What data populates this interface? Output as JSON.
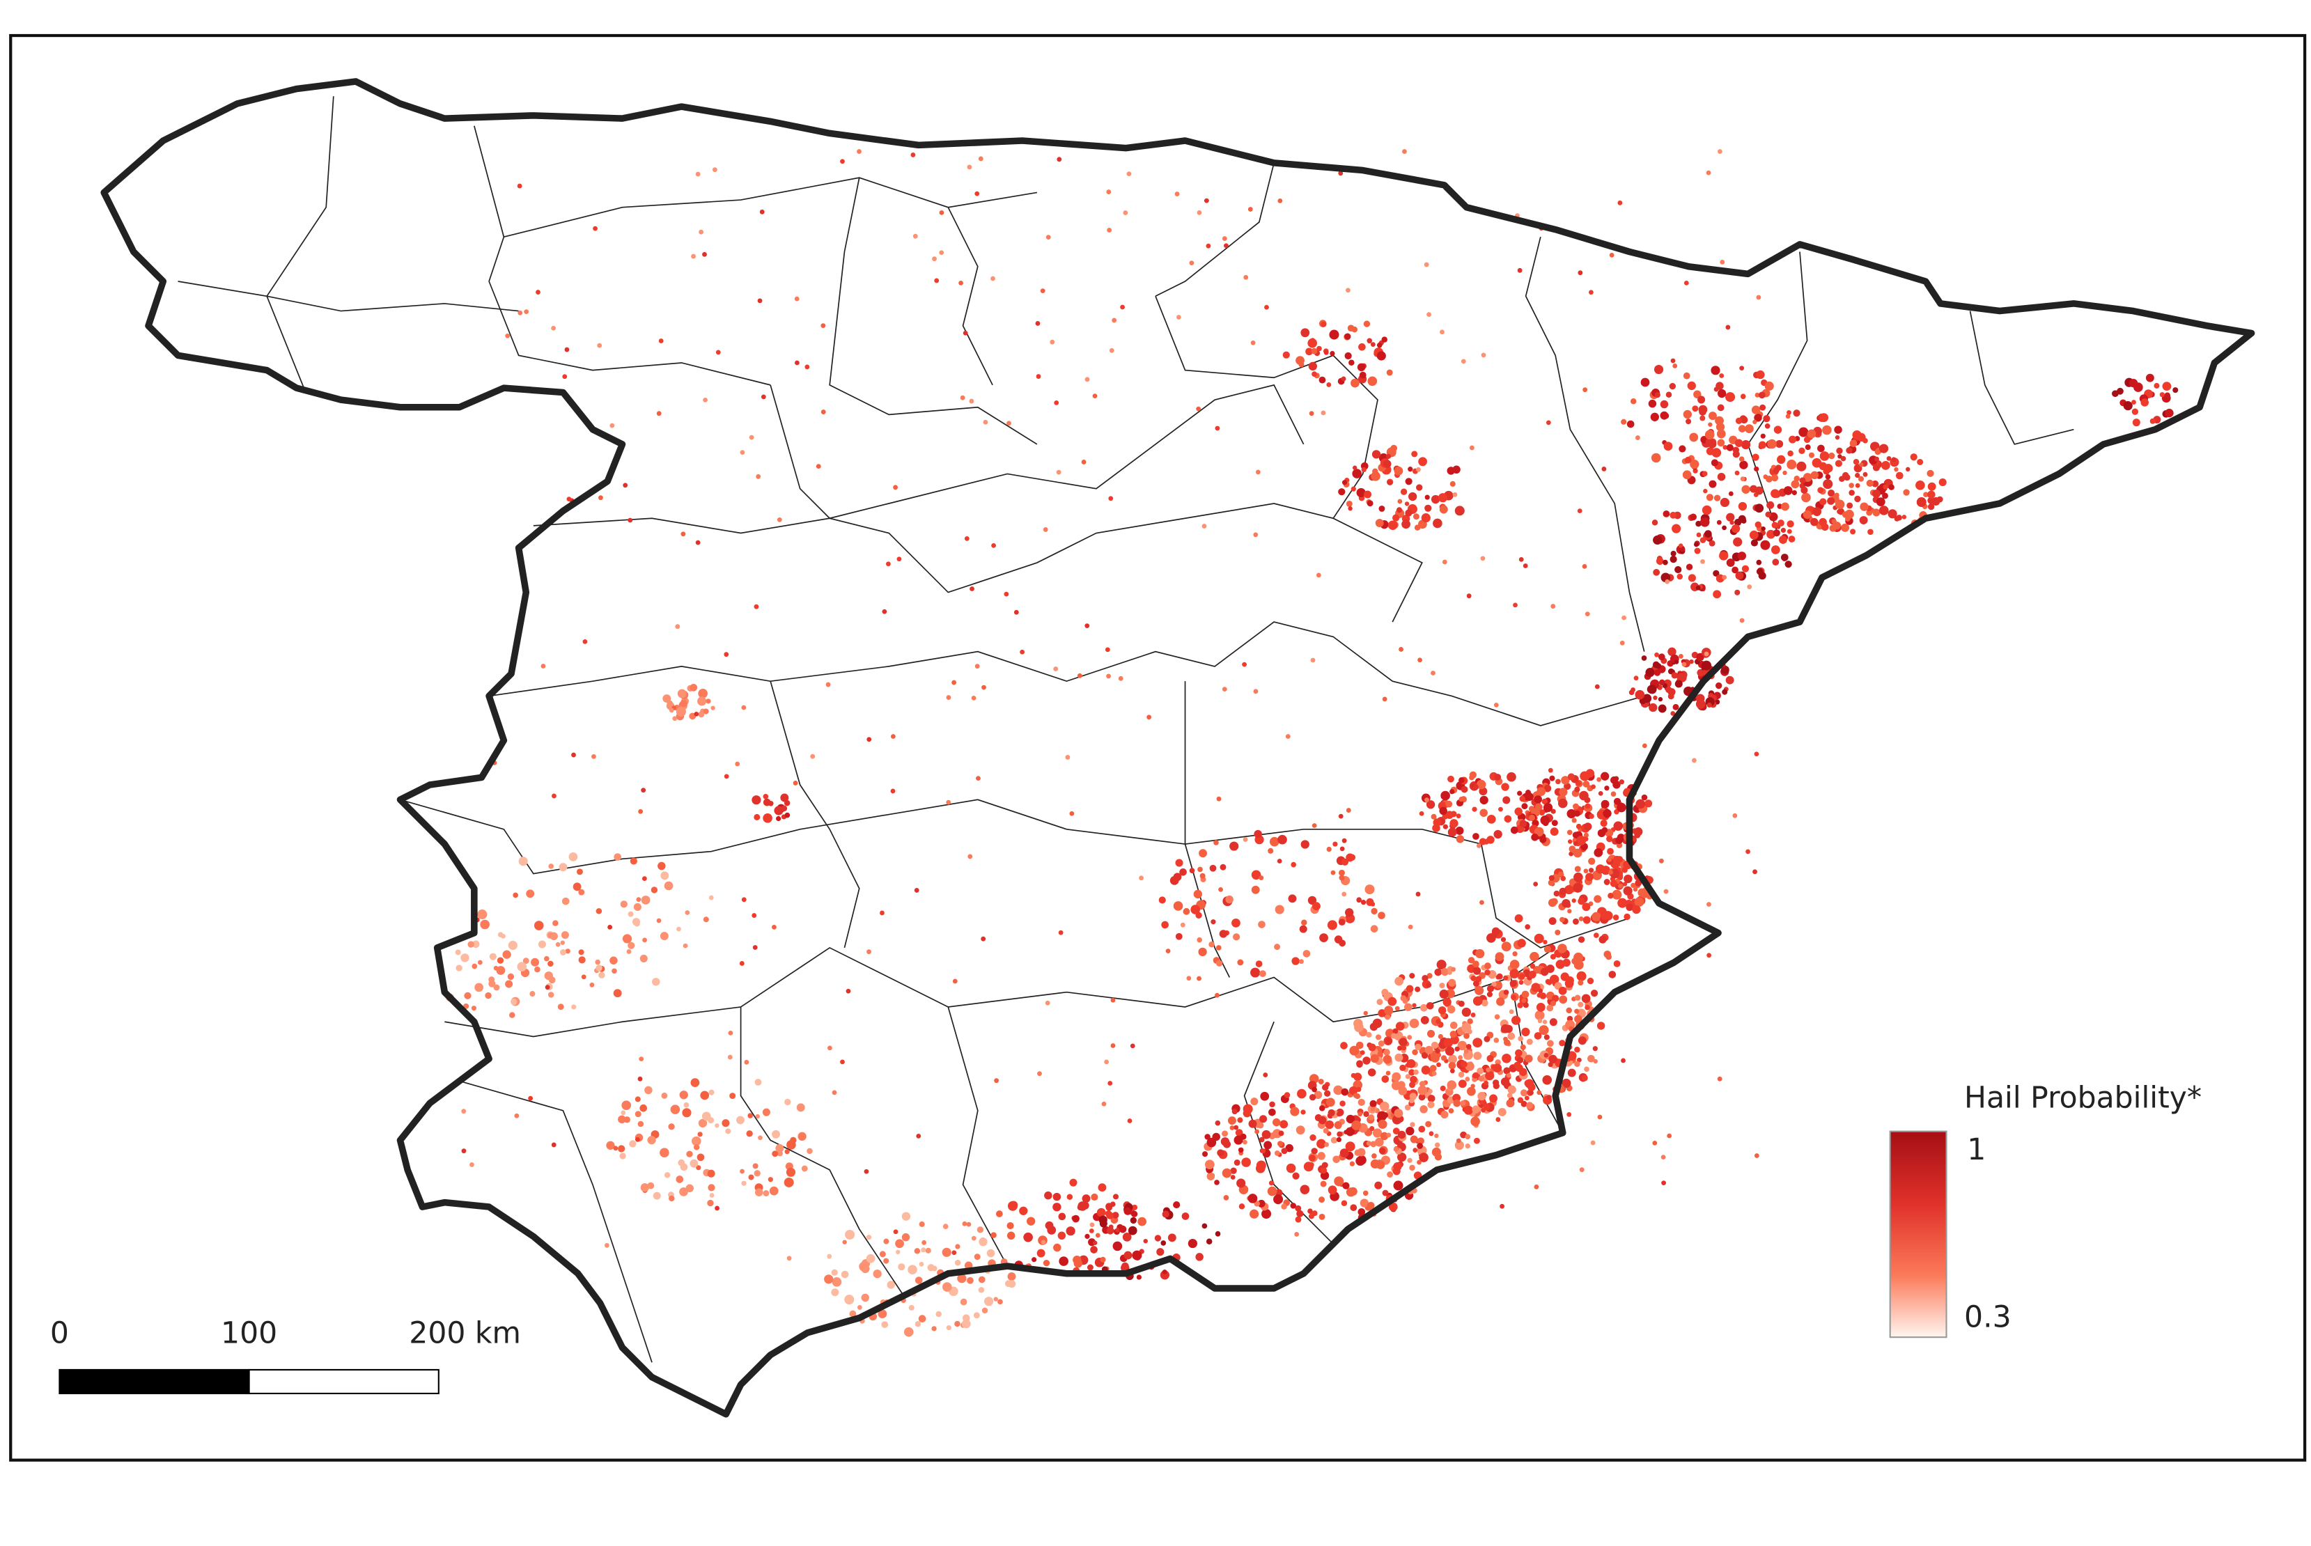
{
  "legend": {
    "title": "Hail Probability*",
    "max": 1,
    "min": 0.3
  },
  "scale_bar": {
    "ticks": [
      0,
      100,
      {
        "value": 200,
        "label": "200 km"
      }
    ]
  }
}
